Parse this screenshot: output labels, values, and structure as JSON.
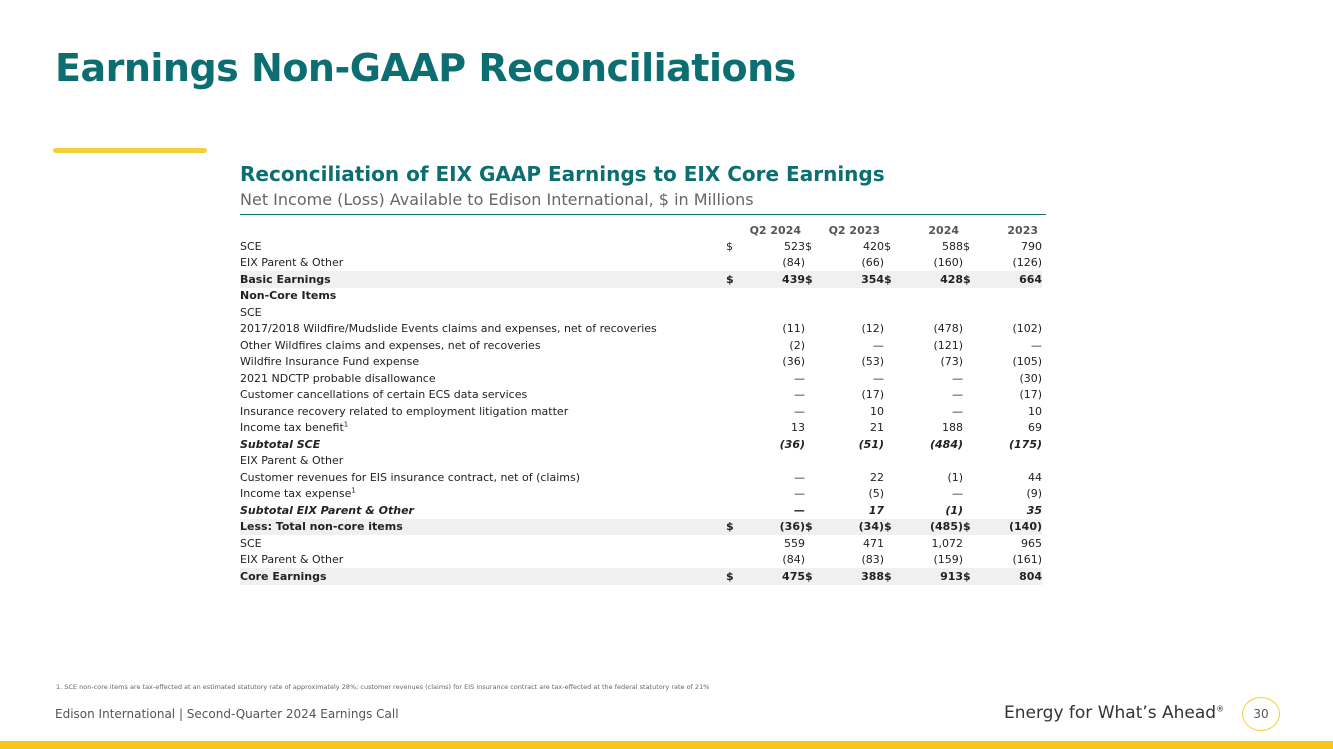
{
  "title": "Earnings Non-GAAP Reconciliations",
  "section": {
    "title": "Reconciliation of EIX GAAP Earnings to EIX Core Earnings",
    "subtitle": "Net Income (Loss) Available to Edison International, $ in Millions"
  },
  "table": {
    "headers": [
      "Q2 2024",
      "Q2 2023",
      "2024",
      "2023"
    ],
    "rows": {
      "sce": {
        "label": "SCE",
        "v": [
          "523",
          "420",
          "588",
          "790"
        ],
        "d": [
          "$",
          "$",
          "$",
          "$"
        ]
      },
      "eix1": {
        "label": "EIX Parent & Other",
        "v": [
          "(84)",
          "(66)",
          "(160)",
          "(126)"
        ]
      },
      "basic": {
        "label": "Basic Earnings",
        "v": [
          "439",
          "354",
          "428",
          "664"
        ],
        "d": [
          "$",
          "$",
          "$",
          "$"
        ]
      },
      "noncore": {
        "label": "Non-Core Items"
      },
      "sce_hdr": {
        "label": "SCE"
      },
      "wf2017": {
        "label": "2017/2018 Wildfire/Mudslide Events claims and expenses, net of recoveries",
        "v": [
          "(11)",
          "(12)",
          "(478)",
          "(102)"
        ]
      },
      "otherwf": {
        "label": "Other Wildfires claims and expenses, net of recoveries",
        "v": [
          "(2)",
          "—",
          "(121)",
          "—"
        ]
      },
      "wif": {
        "label": "Wildfire Insurance Fund expense",
        "v": [
          "(36)",
          "(53)",
          "(73)",
          "(105)"
        ]
      },
      "ndctp": {
        "label": "2021 NDCTP probable disallowance",
        "v": [
          "—",
          "—",
          "—",
          "(30)"
        ]
      },
      "ecs": {
        "label": "Customer cancellations of certain ECS data services",
        "v": [
          "—",
          "(17)",
          "—",
          "(17)"
        ]
      },
      "insrec": {
        "label": "Insurance recovery related to employment litigation matter",
        "v": [
          "—",
          "10",
          "—",
          "10"
        ]
      },
      "taxben": {
        "label": "Income tax benefit",
        "sup": "1",
        "v": [
          "13",
          "21",
          "188",
          "69"
        ]
      },
      "subsce": {
        "label": "Subtotal SCE",
        "v": [
          "(36)",
          "(51)",
          "(484)",
          "(175)"
        ]
      },
      "eix_hdr": {
        "label": "EIX Parent & Other"
      },
      "eisrev": {
        "label": "Customer revenues for EIS insurance contract, net of (claims)",
        "v": [
          "—",
          "22",
          "(1)",
          "44"
        ]
      },
      "taxexp": {
        "label": "Income tax expense",
        "sup": "1",
        "v": [
          "—",
          "(5)",
          "—",
          "(9)"
        ]
      },
      "subeix": {
        "label": "Subtotal EIX Parent & Other",
        "v": [
          "—",
          "17",
          "(1)",
          "35"
        ]
      },
      "lessnc": {
        "label": "Less: Total non-core items",
        "v": [
          "(36)",
          "(34)",
          "(485)",
          "(140)"
        ],
        "d": [
          "$",
          "$",
          "$",
          "$"
        ]
      },
      "sce2": {
        "label": "SCE",
        "v": [
          "559",
          "471",
          "1,072",
          "965"
        ]
      },
      "eix2": {
        "label": "EIX Parent & Other",
        "v": [
          "(84)",
          "(83)",
          "(159)",
          "(161)"
        ]
      },
      "core": {
        "label": "Core Earnings",
        "v": [
          "475",
          "388",
          "913",
          "804"
        ],
        "d": [
          "$",
          "$",
          "$",
          "$"
        ]
      }
    }
  },
  "footnote": "1.  SCE non-core items are tax-effected at an estimated statutory rate of approximately 28%; customer revenues (claims) for EIS insurance contract are tax-effected at the federal statutory rate of 21%",
  "footer": {
    "left": "Edison International |  Second-Quarter 2024 Earnings Call",
    "tagline": "Energy for What’s Ahead",
    "tagline_mark": "®",
    "page_number": "30"
  },
  "colors": {
    "brand_teal": "#0d6e72",
    "accent_yellow": "#f4c51a"
  }
}
